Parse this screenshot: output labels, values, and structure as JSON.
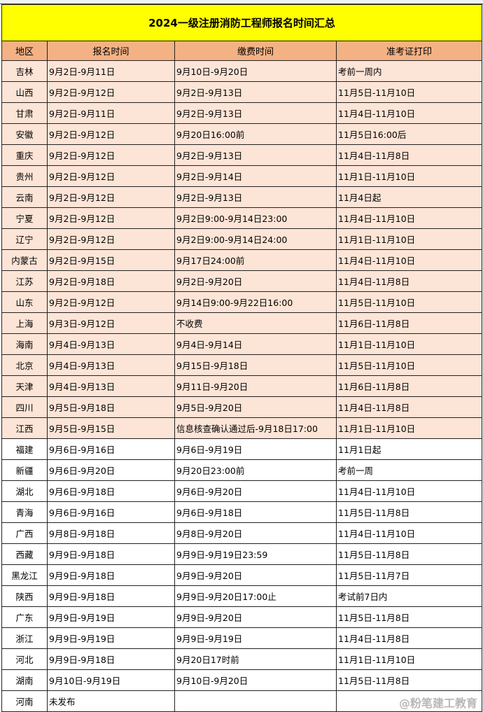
{
  "title": "2024一级注册消防工程师报名时间汇总",
  "headers": [
    "地区",
    "报名时间",
    "缴费时间",
    "准考证打印"
  ],
  "colors": {
    "title_bg": "#ffff00",
    "header_bg": "#f4b183",
    "shaded_row_bg": "#fce4d6"
  },
  "rows": [
    {
      "region": "吉林",
      "reg": "9月2日-9月11日",
      "pay": "9月10日-9月20日",
      "ticket": "考前一周内",
      "shaded": true
    },
    {
      "region": "山西",
      "reg": "9月2日-9月12日",
      "pay": "9月2日-9月13日",
      "ticket": "11月5日-11月10日",
      "shaded": true
    },
    {
      "region": "甘肃",
      "reg": "9月2日-9月11日",
      "pay": "9月2日-9月13日",
      "ticket": "11月4日-11月10日",
      "shaded": true
    },
    {
      "region": "安徽",
      "reg": "9月2日-9月12日",
      "pay": "9月20日16:00前",
      "ticket": "11月5日16:00后",
      "shaded": true
    },
    {
      "region": "重庆",
      "reg": "9月2日-9月12日",
      "pay": "9月2日-9月13日",
      "ticket": "11月4日-11月8日",
      "shaded": true
    },
    {
      "region": "贵州",
      "reg": "9月2日-9月12日",
      "pay": "9月2日-9月14日",
      "ticket": "11月1日-11月10日",
      "shaded": true
    },
    {
      "region": "云南",
      "reg": "9月2日-9月12日",
      "pay": "9月2日-9月13日",
      "ticket": "11月4日起",
      "shaded": true
    },
    {
      "region": "宁夏",
      "reg": "9月2日-9月12日",
      "pay": "9月2日9:00-9月14日23:00",
      "ticket": "11月4日-11月10日",
      "shaded": true
    },
    {
      "region": "辽宁",
      "reg": "9月2日-9月12日",
      "pay": "9月2日9:00-9月14日24:00",
      "ticket": "11月1日-11月10日",
      "shaded": true
    },
    {
      "region": "内蒙古",
      "reg": "9月2日-9月15日",
      "pay": "9月17日24:00前",
      "ticket": "11月4日-11月10日",
      "shaded": true
    },
    {
      "region": "江苏",
      "reg": "9月2日-9月18日",
      "pay": "9月2日-9月20日",
      "ticket": "11月4日-11月8日",
      "shaded": true
    },
    {
      "region": "山东",
      "reg": "9月2日-9月12日",
      "pay": "9月14日9:00-9月22日16:00",
      "ticket": "11月5日-11月10日",
      "shaded": true
    },
    {
      "region": "上海",
      "reg": "9月3日-9月12日",
      "pay": "不收费",
      "ticket": "11月6日-11月8日",
      "shaded": true
    },
    {
      "region": "海南",
      "reg": "9月4日-9月13日",
      "pay": "9月4日-9月14日",
      "ticket": "11月1日-11月10日",
      "shaded": true
    },
    {
      "region": "北京",
      "reg": "9月4日-9月13日",
      "pay": "9月15日-9月18日",
      "ticket": "11月5日-11月10日",
      "shaded": true
    },
    {
      "region": "天津",
      "reg": "9月4日-9月13日",
      "pay": "9月11日-9月20日",
      "ticket": "11月6日-11月8日",
      "shaded": true
    },
    {
      "region": "四川",
      "reg": "9月5日-9月18日",
      "pay": "9月5日-9月20日",
      "ticket": "11月4日-11月8日",
      "shaded": true
    },
    {
      "region": "江西",
      "reg": "9月5日-9月15日",
      "pay": "信息核查确认通过后-9月18日17:00",
      "ticket": "11月1日-11月10日",
      "shaded": true
    },
    {
      "region": "福建",
      "reg": "9月6日-9月16日",
      "pay": "9月6日-9月19日",
      "ticket": "11月1日起",
      "shaded": false
    },
    {
      "region": "新疆",
      "reg": "9月6日-9月20日",
      "pay": "9月20日23:00前",
      "ticket": "考前一周",
      "shaded": false
    },
    {
      "region": "湖北",
      "reg": "9月6日-9月18日",
      "pay": "9月6日-9月20日",
      "ticket": "11月4日-11月10日",
      "shaded": false
    },
    {
      "region": "青海",
      "reg": "9月6日-9月16日",
      "pay": "9月6日-9月18日",
      "ticket": "11月5日-11月8日",
      "shaded": false
    },
    {
      "region": "广西",
      "reg": "9月8日-9月18日",
      "pay": "9月8日-9月20日",
      "ticket": "11月4日-11月10日",
      "shaded": false
    },
    {
      "region": "西藏",
      "reg": "9月9日-9月18日",
      "pay": "9月9日-9月19日23:59",
      "ticket": "11月5日-11月8日",
      "shaded": false
    },
    {
      "region": "黑龙江",
      "reg": "9月9日-9月18日",
      "pay": "9月9日-9月20日",
      "ticket": "11月5日-11月7日",
      "shaded": false
    },
    {
      "region": "陕西",
      "reg": "9月9日-9月18日",
      "pay": "9月9日-9月20日17:00止",
      "ticket": "考试前7日内",
      "shaded": false
    },
    {
      "region": "广东",
      "reg": "9月9日-9月19日",
      "pay": "9月9日-9月20日",
      "ticket": "11月5日-11月8日",
      "shaded": false
    },
    {
      "region": "浙江",
      "reg": "9月9日-9月19日",
      "pay": "9月9日-9月19日",
      "ticket": "11月4日-11月8日",
      "shaded": false
    },
    {
      "region": "河北",
      "reg": "9月9日-9月18日",
      "pay": "9月20日17时前",
      "ticket": "11月1日-11月10日",
      "shaded": false
    },
    {
      "region": "湖南",
      "reg": "9月10日-9月19日",
      "pay": "9月10日-9月20日",
      "ticket": "11月5日-11月8日",
      "shaded": false
    },
    {
      "region": "河南",
      "reg": "未发布",
      "pay": "",
      "ticket": "",
      "shaded": false
    }
  ],
  "watermark": "@粉笔建工教育"
}
